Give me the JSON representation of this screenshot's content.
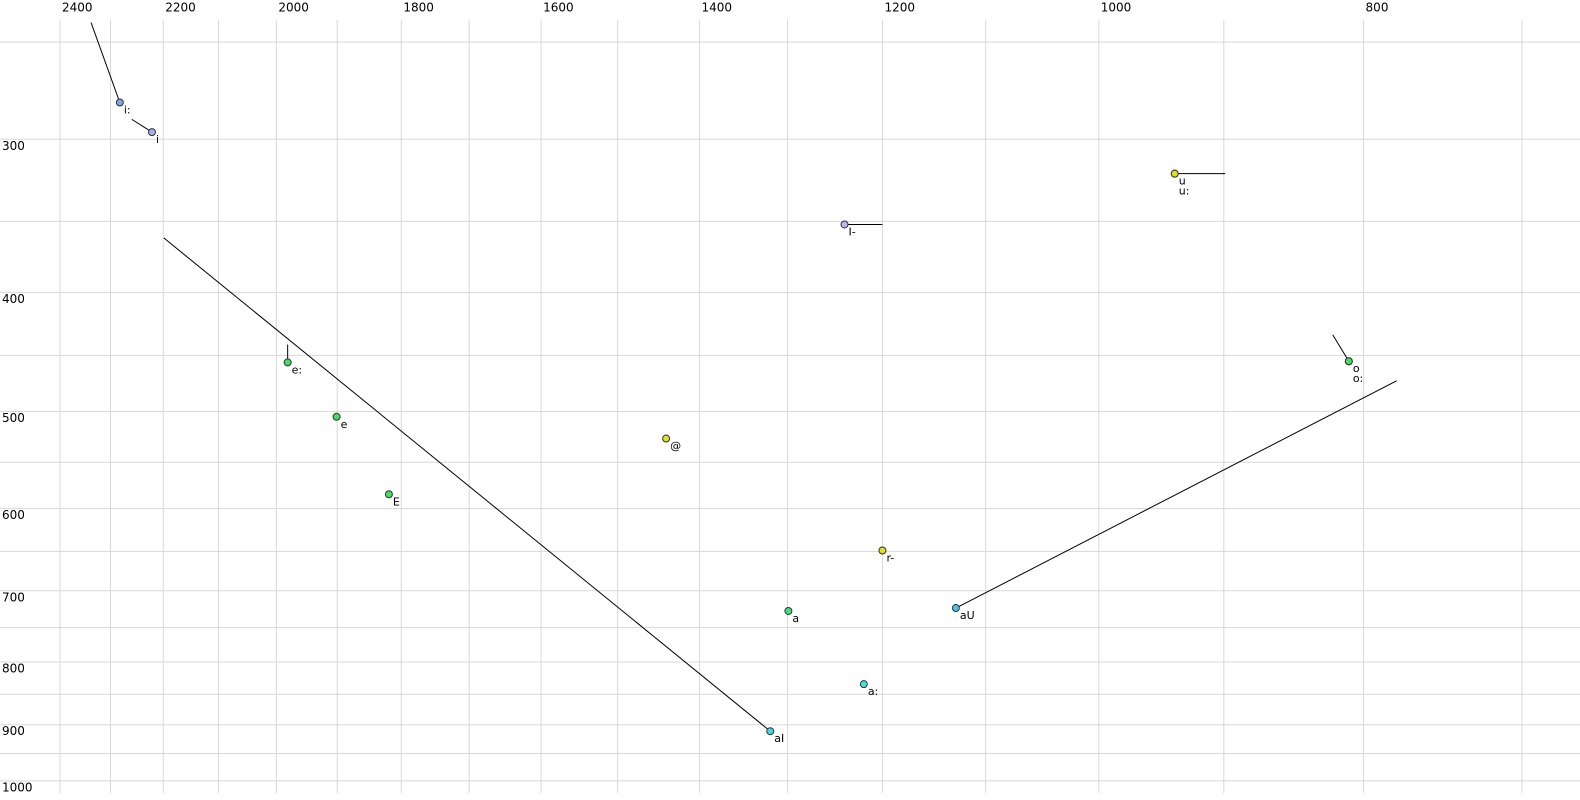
{
  "chart_data": {
    "type": "scatter",
    "x_log": true,
    "y_log": true,
    "xlim": [
      2400,
      700
    ],
    "ylim": [
      231,
      1023
    ],
    "xticks": [
      2400,
      2200,
      2000,
      1800,
      1600,
      1400,
      1200,
      1000,
      800
    ],
    "xminor": [
      2300,
      2100,
      1900,
      1700,
      1500,
      1300,
      1100,
      900,
      700
    ],
    "yticks": [
      300,
      400,
      500,
      600,
      700,
      800,
      900,
      1000
    ],
    "yminor": [
      250,
      350,
      450,
      550,
      650,
      750,
      850,
      950
    ],
    "grid": true,
    "points": [
      {
        "label": "i:",
        "x": 2282,
        "y": 280,
        "color": "#7fa6e0",
        "tail_x": 2338,
        "tail_y": 241
      },
      {
        "label": "i",
        "x": 2221,
        "y": 296,
        "color": "#a0b0f0",
        "tail_x": 2259,
        "tail_y": 289
      },
      {
        "label": "u",
        "x": 938,
        "y": 320,
        "color": "#e0e020",
        "tail_x": 899,
        "tail_y": 320
      },
      {
        "label": "u:",
        "x": 938,
        "y": 320,
        "color": "#e0e020"
      },
      {
        "label": "I-",
        "x": 1239,
        "y": 352,
        "color": "#b8b8f0",
        "tail_x": 1200,
        "tail_y": 352
      },
      {
        "label": "e:",
        "x": 1981,
        "y": 456,
        "color": "#40e060",
        "tail_x": 1981,
        "tail_y": 441
      },
      {
        "label": "e",
        "x": 1901,
        "y": 505,
        "color": "#40e060"
      },
      {
        "label": "E",
        "x": 1819,
        "y": 584,
        "color": "#40e060"
      },
      {
        "label": "@",
        "x": 1440,
        "y": 526,
        "color": "#e0e020"
      },
      {
        "label": "r-",
        "x": 1200,
        "y": 649,
        "color": "#e0e020"
      },
      {
        "label": "a",
        "x": 1299,
        "y": 727,
        "color": "#40e080"
      },
      {
        "label": "a:",
        "x": 1219,
        "y": 834,
        "color": "#40e0e0"
      },
      {
        "label": "aI",
        "x": 1319,
        "y": 911,
        "color": "#40d8e8",
        "tail_x": 2199,
        "tail_y": 361
      },
      {
        "label": "aU",
        "x": 1128,
        "y": 723,
        "color": "#40c8f0",
        "tail_x": 778,
        "tail_y": 472
      },
      {
        "label": "o",
        "x": 810,
        "y": 455,
        "color": "#40e060",
        "tail_x": 821,
        "tail_y": 433
      },
      {
        "label": "o:",
        "x": 810,
        "y": 455,
        "color": "#40e060"
      }
    ]
  }
}
